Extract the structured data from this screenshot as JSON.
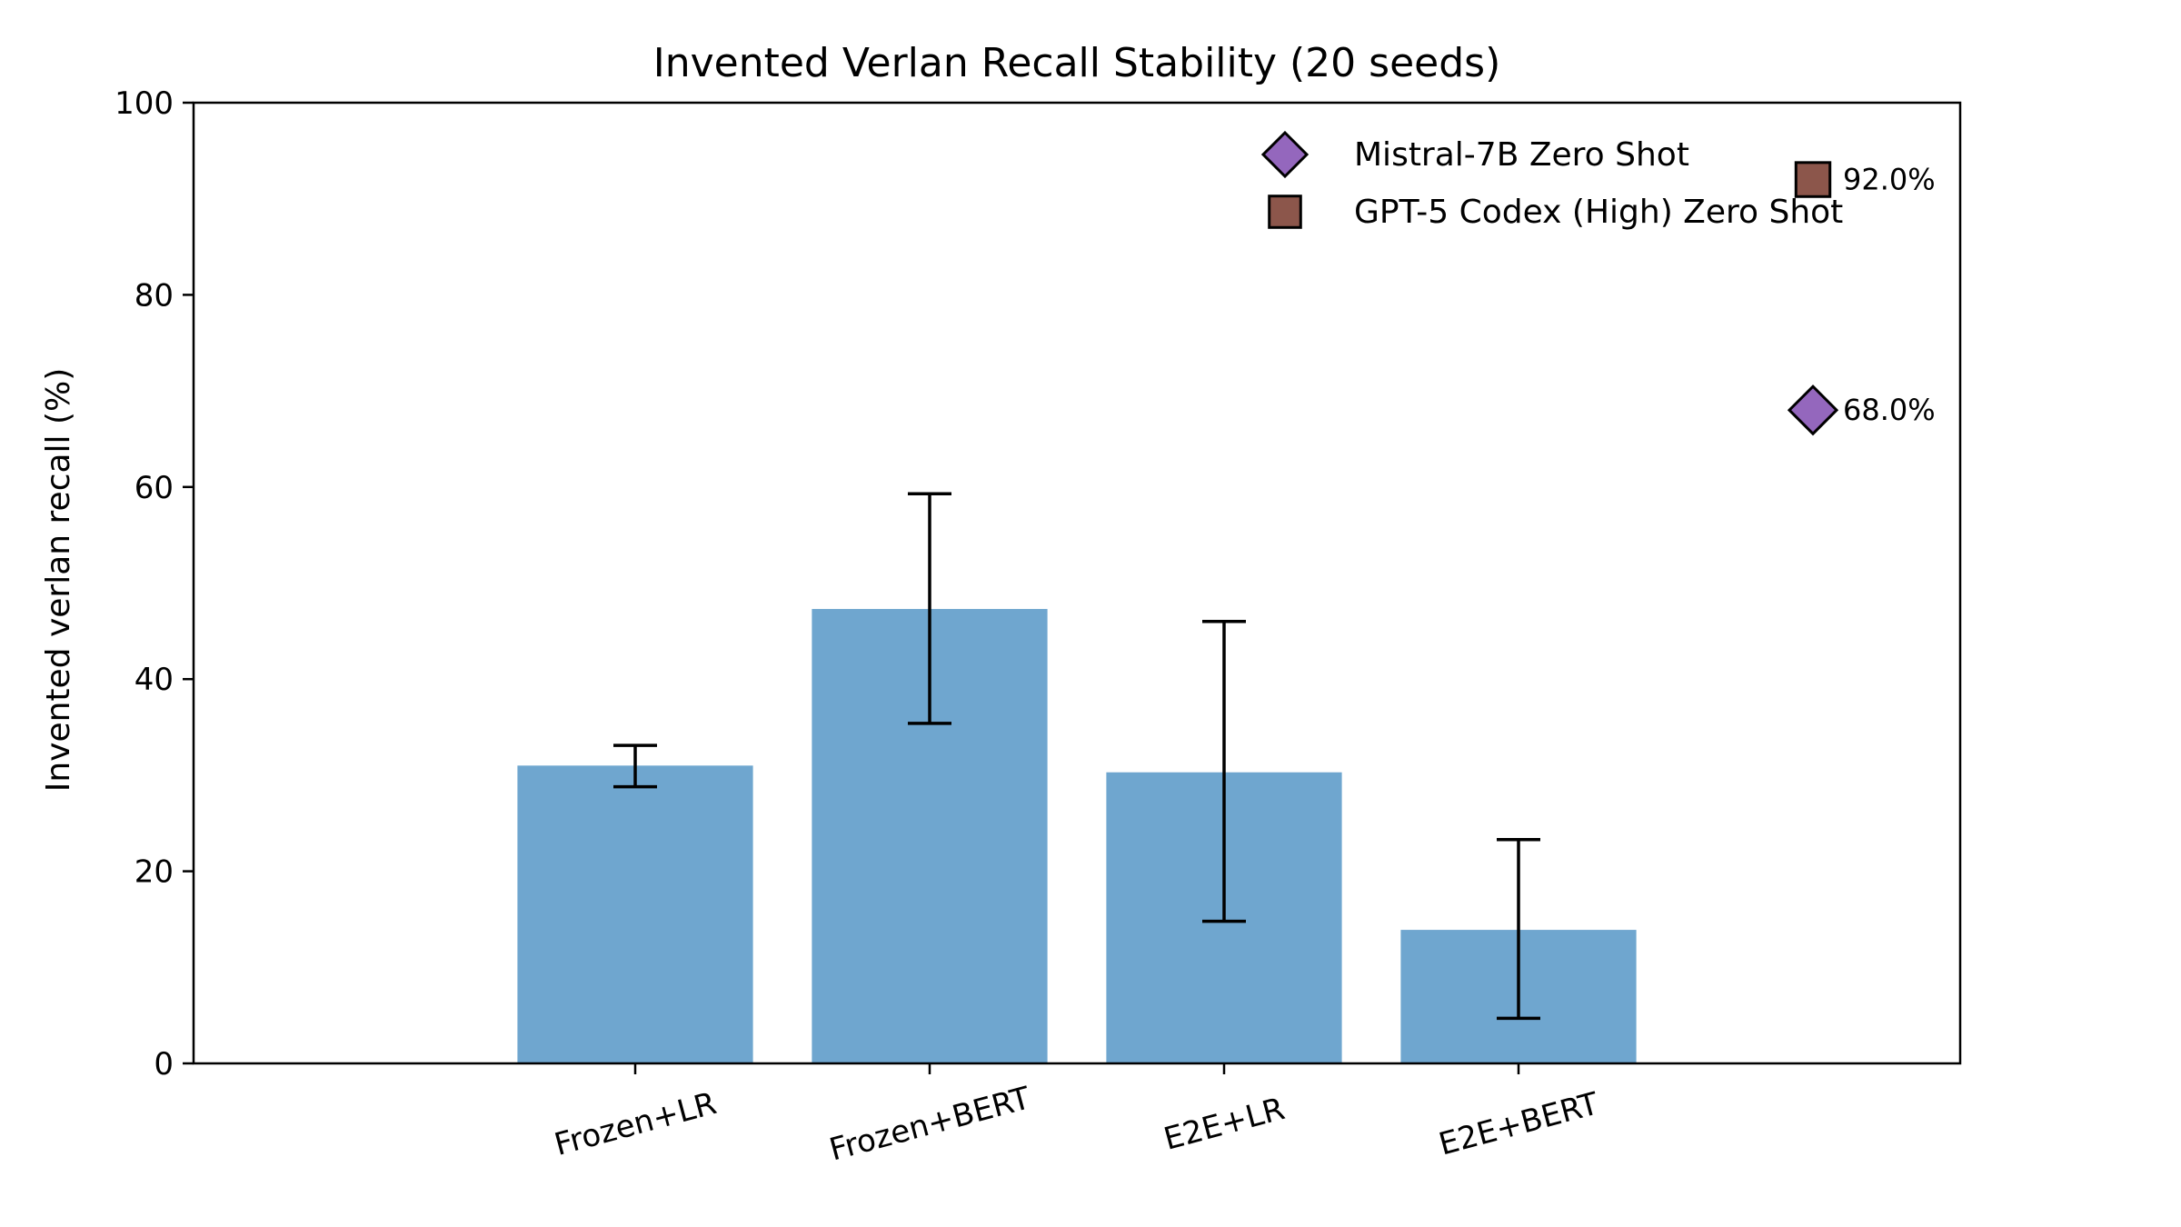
{
  "chart_data": {
    "type": "bar",
    "title": "Invented Verlan Recall Stability (20 seeds)",
    "xlabel": "",
    "ylabel": "Invented verlan recall (%)",
    "ylim": [
      0,
      100
    ],
    "yticks": [
      0,
      20,
      40,
      60,
      80,
      100
    ],
    "xlim": [
      -1.5,
      4.5
    ],
    "grid": false,
    "categories": [
      "Frozen+LR",
      "Frozen+BERT",
      "E2E+LR",
      "E2E+BERT"
    ],
    "bars": {
      "values": [
        31.0,
        47.3,
        30.3,
        13.9
      ],
      "error_low": [
        28.8,
        35.4,
        14.8,
        4.7
      ],
      "error_high": [
        33.1,
        59.3,
        46.0,
        23.3
      ],
      "color": "#6fa6cf"
    },
    "zero_shot": [
      {
        "name": "Mistral-7B Zero Shot",
        "marker": "diamond",
        "color": "#9467bd",
        "x": 4.0,
        "value": 68.0,
        "label": "68.0%"
      },
      {
        "name": "GPT-5 Codex (High) Zero Shot",
        "marker": "square",
        "color": "#8c564b",
        "x": 4.0,
        "value": 92.0,
        "label": "92.0%"
      }
    ],
    "legend_position": "top-right"
  }
}
